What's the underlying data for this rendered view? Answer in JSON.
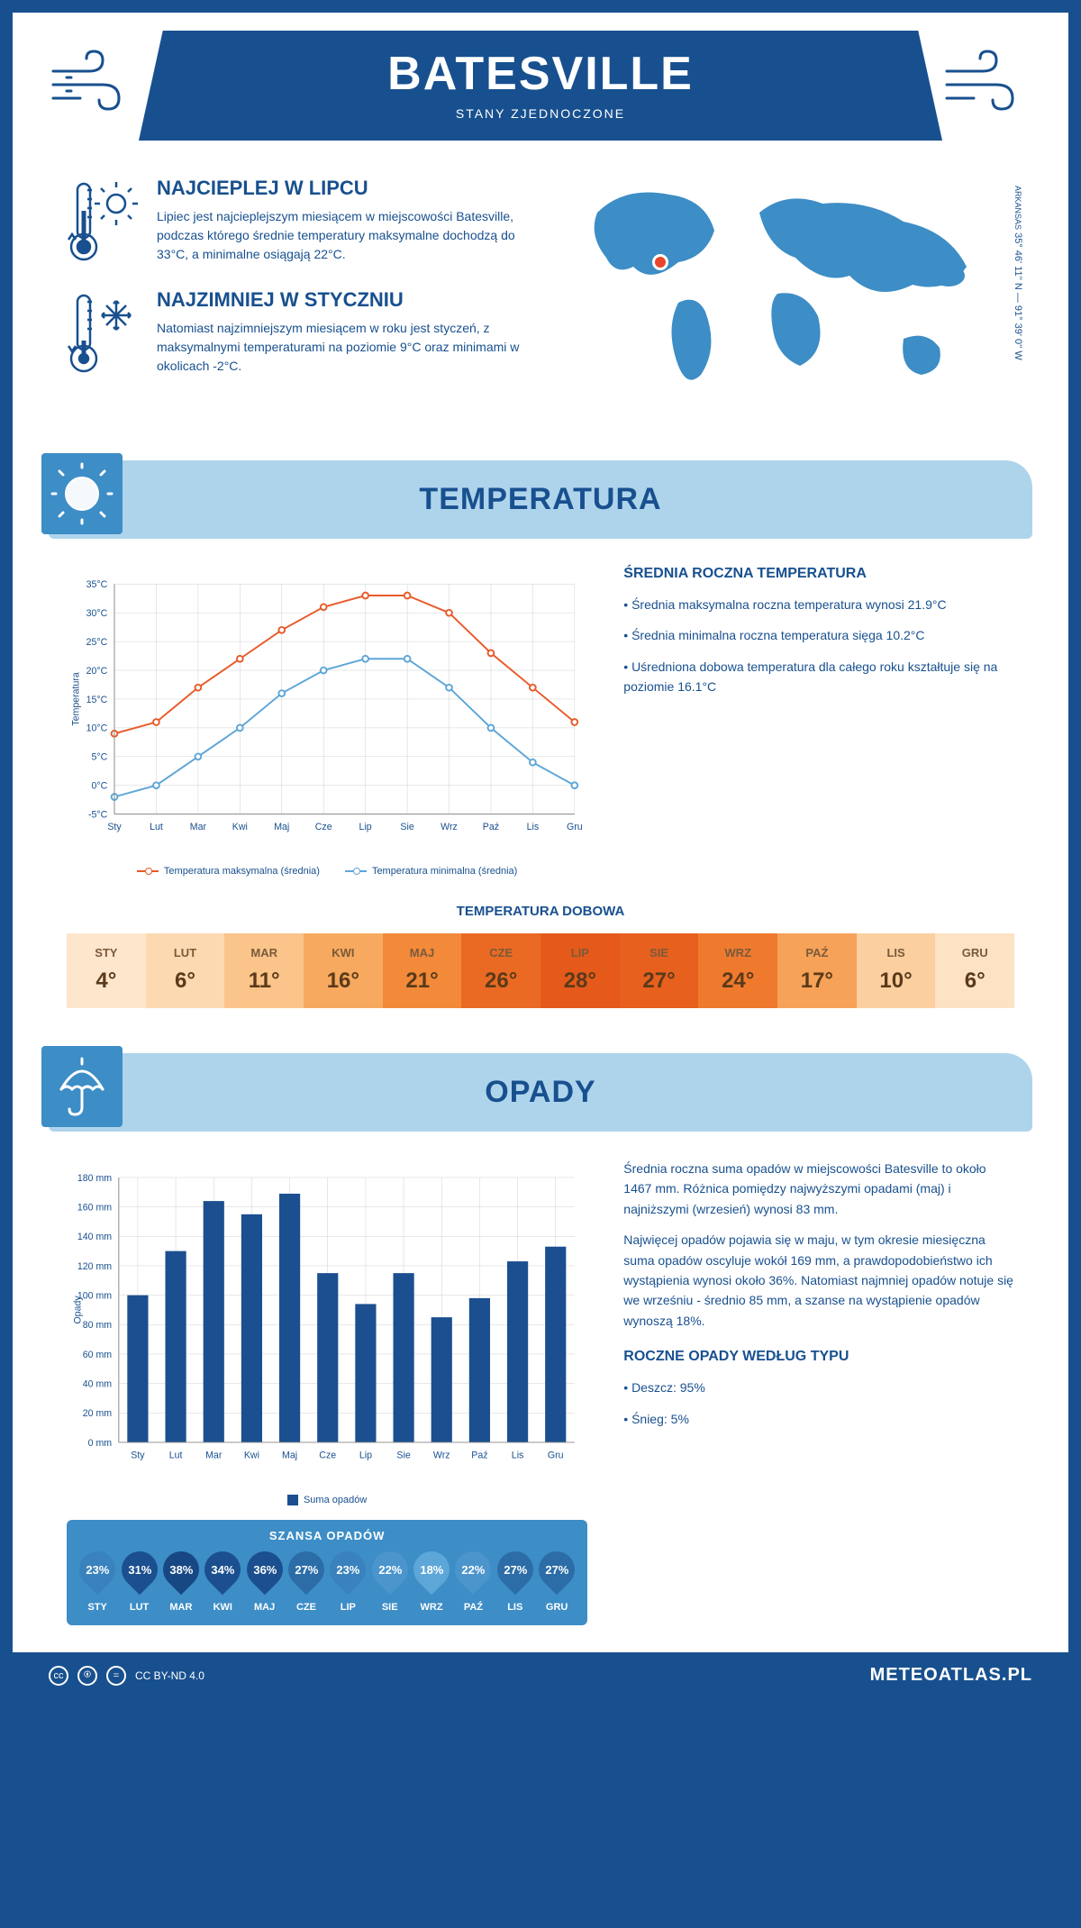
{
  "header": {
    "city": "BATESVILLE",
    "country": "STANY ZJEDNOCZONE"
  },
  "coords": {
    "text": "35° 46' 11'' N — 91° 39' 0'' W",
    "region": "ARKANSAS"
  },
  "hot": {
    "title": "NAJCIEPLEJ W LIPCU",
    "text": "Lipiec jest najcieplejszym miesiącem w miejscowości Batesville, podczas którego średnie temperatury maksymalne dochodzą do 33°C, a minimalne osiągają 22°C."
  },
  "cold": {
    "title": "NAJZIMNIEJ W STYCZNIU",
    "text": "Natomiast najzimniejszym miesiącem w roku jest styczeń, z maksymalnymi temperaturami na poziomie 9°C oraz minimami w okolicach -2°C."
  },
  "tempSection": {
    "title": "TEMPERATURA",
    "statsTitle": "ŚREDNIA ROCZNA TEMPERATURA",
    "bullets": [
      "• Średnia maksymalna roczna temperatura wynosi 21.9°C",
      "• Średnia minimalna roczna temperatura sięga 10.2°C",
      "• Uśredniona dobowa temperatura dla całego roku kształtuje się na poziomie 16.1°C"
    ],
    "chart": {
      "months": [
        "Sty",
        "Lut",
        "Mar",
        "Kwi",
        "Maj",
        "Cze",
        "Lip",
        "Sie",
        "Wrz",
        "Paź",
        "Lis",
        "Gru"
      ],
      "max": [
        9,
        11,
        17,
        22,
        27,
        31,
        33,
        33,
        30,
        23,
        17,
        11
      ],
      "min": [
        -2,
        0,
        5,
        10,
        16,
        20,
        22,
        22,
        17,
        10,
        4,
        0
      ],
      "ylim": [
        -5,
        35
      ],
      "ytick_step": 5,
      "ylabel": "Temperatura",
      "max_color": "#e85a2a",
      "min_color": "#5da6d8",
      "grid_color": "#d0d0d0",
      "legend_max": "Temperatura maksymalna (średnia)",
      "legend_min": "Temperatura minimalna (średnia)"
    }
  },
  "dailyTemp": {
    "title": "TEMPERATURA DOBOWA",
    "cells": [
      {
        "m": "STY",
        "v": "4°",
        "bg": "#fde6cc"
      },
      {
        "m": "LUT",
        "v": "6°",
        "bg": "#fcd9b0"
      },
      {
        "m": "MAR",
        "v": "11°",
        "bg": "#fac48a"
      },
      {
        "m": "KWI",
        "v": "16°",
        "bg": "#f7a95f"
      },
      {
        "m": "MAJ",
        "v": "21°",
        "bg": "#f28a3a"
      },
      {
        "m": "CZE",
        "v": "26°",
        "bg": "#ea6a24"
      },
      {
        "m": "LIP",
        "v": "28°",
        "bg": "#e55a1a"
      },
      {
        "m": "SIE",
        "v": "27°",
        "bg": "#e7601e"
      },
      {
        "m": "WRZ",
        "v": "24°",
        "bg": "#ef7a2e"
      },
      {
        "m": "PAŹ",
        "v": "17°",
        "bg": "#f6a258"
      },
      {
        "m": "LIS",
        "v": "10°",
        "bg": "#fbcfa0"
      },
      {
        "m": "GRU",
        "v": "6°",
        "bg": "#fde2c4"
      }
    ]
  },
  "rainSection": {
    "title": "OPADY",
    "para1": "Średnia roczna suma opadów w miejscowości Batesville to około 1467 mm. Różnica pomiędzy najwyższymi opadami (maj) i najniższymi (wrzesień) wynosi 83 mm.",
    "para2": "Najwięcej opadów pojawia się w maju, w tym okresie miesięczna suma opadów oscyluje wokół 169 mm, a prawdopodobieństwo ich wystąpienia wynosi około 36%. Natomiast najmniej opadów notuje się we wrześniu - średnio 85 mm, a szanse na wystąpienie opadów wynoszą 18%.",
    "typeTitle": "ROCZNE OPADY WEDŁUG TYPU",
    "typeBullets": [
      "• Deszcz: 95%",
      "• Śnieg: 5%"
    ],
    "chart": {
      "months": [
        "Sty",
        "Lut",
        "Mar",
        "Kwi",
        "Maj",
        "Cze",
        "Lip",
        "Sie",
        "Wrz",
        "Paź",
        "Lis",
        "Gru"
      ],
      "values": [
        100,
        130,
        164,
        155,
        169,
        115,
        94,
        115,
        85,
        98,
        123,
        133
      ],
      "ylim": [
        0,
        180
      ],
      "ytick_step": 20,
      "ylabel": "Opady",
      "bar_color": "#1b4f8f",
      "grid_color": "#d0d0d0",
      "legend": "Suma opadów"
    },
    "chance": {
      "title": "SZANSA OPADÓW",
      "items": [
        {
          "m": "STY",
          "v": "23%",
          "c": "#3982bd"
        },
        {
          "m": "LUT",
          "v": "31%",
          "c": "#1b4f8f"
        },
        {
          "m": "MAR",
          "v": "38%",
          "c": "#184884"
        },
        {
          "m": "KWI",
          "v": "34%",
          "c": "#1b4f8f"
        },
        {
          "m": "MAJ",
          "v": "36%",
          "c": "#1b4f8f"
        },
        {
          "m": "CZE",
          "v": "27%",
          "c": "#2c6da8"
        },
        {
          "m": "LIP",
          "v": "23%",
          "c": "#3982bd"
        },
        {
          "m": "SIE",
          "v": "22%",
          "c": "#4b95cc"
        },
        {
          "m": "WRZ",
          "v": "18%",
          "c": "#5da6d8"
        },
        {
          "m": "PAŹ",
          "v": "22%",
          "c": "#4b95cc"
        },
        {
          "m": "LIS",
          "v": "27%",
          "c": "#2c6da8"
        },
        {
          "m": "GRU",
          "v": "27%",
          "c": "#2c6da8"
        }
      ]
    }
  },
  "footer": {
    "license": "CC BY-ND 4.0",
    "site": "METEOATLAS.PL"
  }
}
